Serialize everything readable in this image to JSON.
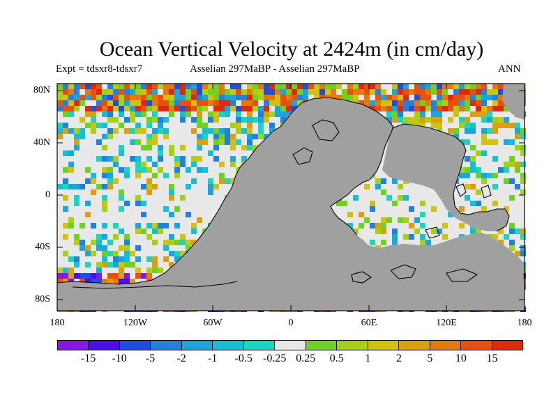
{
  "title": "Ocean Vertical Velocity at 2424m (in cm/day)",
  "expt": "Expt = tdsxr8-tdsxr7",
  "subtitle": "Asselian 297MaBP - Asselian 297MaBP",
  "season": "ANN",
  "y_ticks": [
    "80N",
    "40N",
    "0",
    "40S",
    "80S"
  ],
  "x_ticks": [
    "180",
    "120W",
    "60W",
    "0",
    "60E",
    "120E",
    "180"
  ],
  "colorbar": {
    "labels": [
      "-15",
      "-10",
      "-5",
      "-2",
      "-1",
      "-0.5",
      "-0.25",
      "0.25",
      "0.5",
      "1",
      "2",
      "5",
      "10",
      "15"
    ],
    "colors": [
      "#8a16e6",
      "#4b0ee6",
      "#1e4ee0",
      "#1f82e0",
      "#18a6de",
      "#14c0d6",
      "#1ad6be",
      "#e8e8e8",
      "#6ed21e",
      "#a6d214",
      "#d2c210",
      "#dca00c",
      "#e47a0a",
      "#e8500c",
      "#dc2a0a"
    ]
  },
  "map": {
    "land_color": "#a0a0a0",
    "ocean_color": "#e8e8e8"
  }
}
